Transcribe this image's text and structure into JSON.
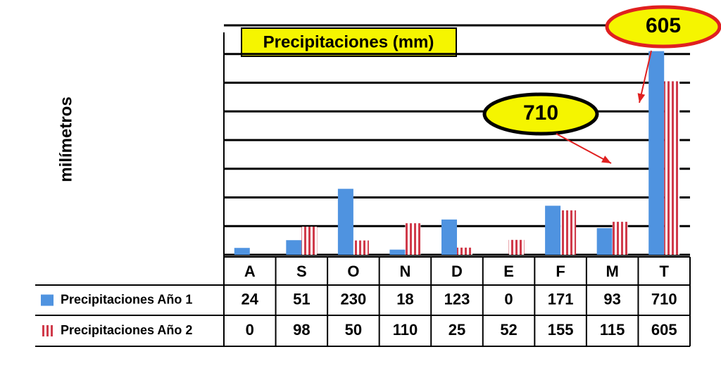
{
  "chart_data": {
    "type": "bar",
    "title": "Precipitaciones (mm)",
    "y_label": "milímetros",
    "categories": [
      "A",
      "S",
      "O",
      "N",
      "D",
      "E",
      "F",
      "M",
      "T"
    ],
    "series": [
      {
        "name": "Precipitaciones  Año 1",
        "color": "#4f93e0",
        "values": [
          24,
          51,
          230,
          18,
          123,
          0,
          171,
          93,
          710
        ]
      },
      {
        "name": "Precipitaciones  Año 2",
        "color": "#d03a4a",
        "values": [
          0,
          98,
          50,
          110,
          25,
          52,
          155,
          115,
          605
        ]
      }
    ],
    "ylim": [
      0,
      800
    ],
    "yticks": [
      0,
      100,
      200,
      300,
      400,
      500,
      600,
      700,
      800
    ],
    "grid": true,
    "annotations": [
      {
        "text": "605"
      },
      {
        "text": "710"
      }
    ]
  }
}
